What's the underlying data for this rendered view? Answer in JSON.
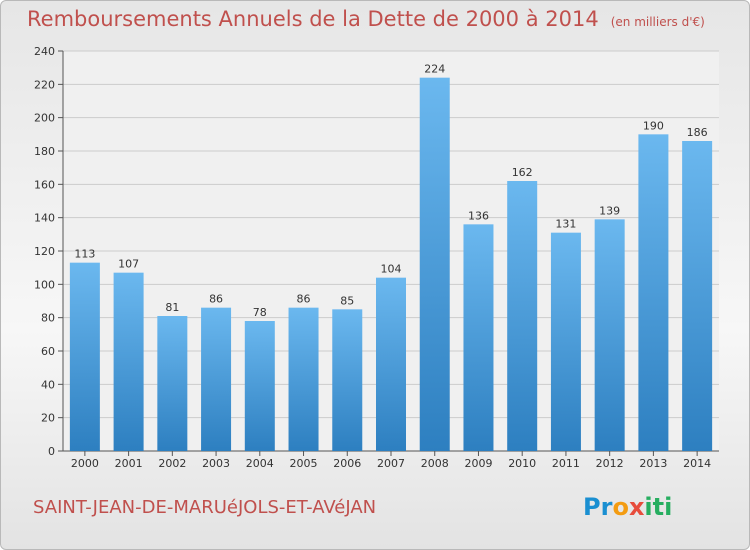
{
  "header": {
    "title": "Remboursements Annuels de la Dette de 2000 à 2014",
    "unit": "(en milliers d'€)"
  },
  "footer": {
    "place": "SAINT-JEAN-DE-MARUéJOLS-ET-AVéJAN",
    "logo": "Proxiti"
  },
  "colors": {
    "title": "#c0504d",
    "bar_light": "#6bb8ef",
    "bar_dark": "#2d7fc0",
    "grid": "#cccccc",
    "plot_bg": "#f0f0f0"
  },
  "chart_data": {
    "type": "bar",
    "title": "Remboursements Annuels de la Dette de 2000 à 2014",
    "subtitle": "(en milliers d'€)",
    "xlabel": "",
    "ylabel": "",
    "ylim": [
      0,
      240
    ],
    "yticks": [
      0,
      20,
      40,
      60,
      80,
      100,
      120,
      140,
      160,
      180,
      200,
      220,
      240
    ],
    "grid": true,
    "categories": [
      "2000",
      "2001",
      "2002",
      "2003",
      "2004",
      "2005",
      "2006",
      "2007",
      "2008",
      "2009",
      "2010",
      "2011",
      "2012",
      "2013",
      "2014"
    ],
    "values": [
      113,
      107,
      81,
      86,
      78,
      86,
      85,
      104,
      224,
      136,
      162,
      131,
      139,
      190,
      186
    ]
  }
}
